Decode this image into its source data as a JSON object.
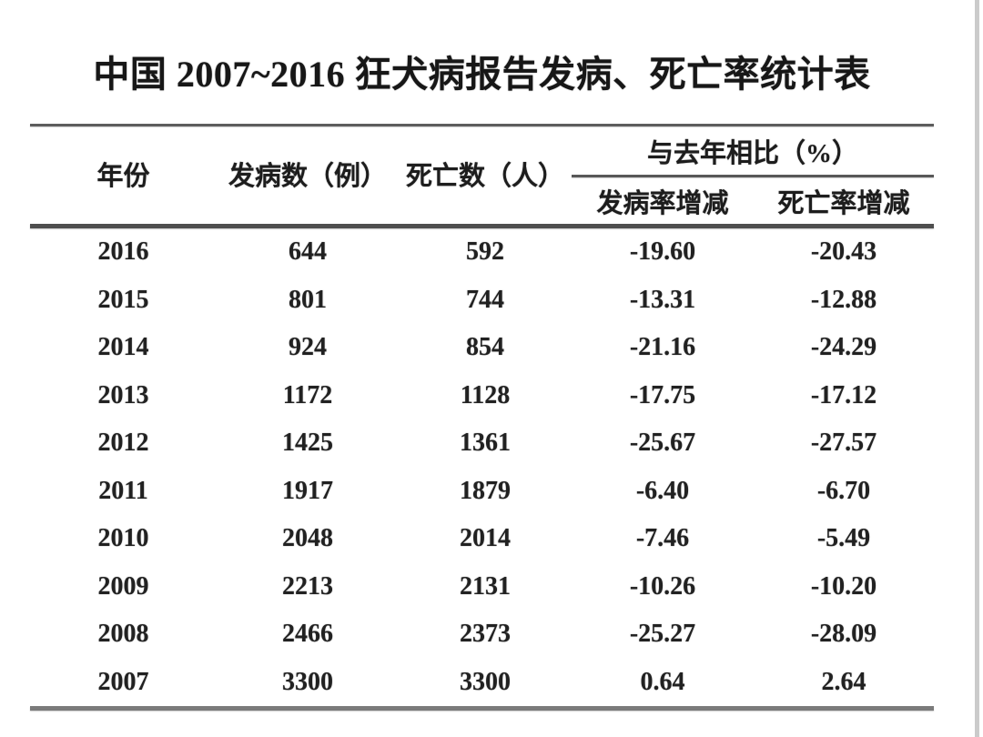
{
  "title": "中国 2007~2016 狂犬病报告发病、死亡率统计表",
  "header": {
    "year": "年份",
    "cases": "发病数（例）",
    "deaths": "死亡数（人）",
    "compare_group": "与去年相比（%）",
    "incidence_change": "发病率增减",
    "mortality_change": "死亡率增减"
  },
  "rows": [
    {
      "year": "2016",
      "cases": "644",
      "deaths": "592",
      "incidence_change": "-19.60",
      "mortality_change": "-20.43"
    },
    {
      "year": "2015",
      "cases": "801",
      "deaths": "744",
      "incidence_change": "-13.31",
      "mortality_change": "-12.88"
    },
    {
      "year": "2014",
      "cases": "924",
      "deaths": "854",
      "incidence_change": "-21.16",
      "mortality_change": "-24.29"
    },
    {
      "year": "2013",
      "cases": "1172",
      "deaths": "1128",
      "incidence_change": "-17.75",
      "mortality_change": "-17.12"
    },
    {
      "year": "2012",
      "cases": "1425",
      "deaths": "1361",
      "incidence_change": "-25.67",
      "mortality_change": "-27.57"
    },
    {
      "year": "2011",
      "cases": "1917",
      "deaths": "1879",
      "incidence_change": "-6.40",
      "mortality_change": "-6.70"
    },
    {
      "year": "2010",
      "cases": "2048",
      "deaths": "2014",
      "incidence_change": "-7.46",
      "mortality_change": "-5.49"
    },
    {
      "year": "2009",
      "cases": "2213",
      "deaths": "2131",
      "incidence_change": "-10.26",
      "mortality_change": "-10.20"
    },
    {
      "year": "2008",
      "cases": "2466",
      "deaths": "2373",
      "incidence_change": "-25.27",
      "mortality_change": "-28.09"
    },
    {
      "year": "2007",
      "cases": "3300",
      "deaths": "3300",
      "incidence_change": "0.64",
      "mortality_change": "2.64"
    }
  ],
  "colors": {
    "background": "#ffffff",
    "text": "#1f1f1f",
    "rule_top": "#5d5d5d",
    "rule_header_bottom": "#4e4e4e",
    "rule_table_bottom": "#7b7b7b",
    "right_edge_strip": "#cbcbcb"
  },
  "chart_data": {
    "type": "table",
    "title": "中国 2007~2016 狂犬病报告发病、死亡率统计表",
    "columns": [
      "年份",
      "发病数（例）",
      "死亡数（人）",
      "与去年相比（%）发病率增减",
      "与去年相比（%）死亡率增减"
    ],
    "rows": [
      [
        2016,
        644,
        592,
        -19.6,
        -20.43
      ],
      [
        2015,
        801,
        744,
        -13.31,
        -12.88
      ],
      [
        2014,
        924,
        854,
        -21.16,
        -24.29
      ],
      [
        2013,
        1172,
        1128,
        -17.75,
        -17.12
      ],
      [
        2012,
        1425,
        1361,
        -25.67,
        -27.57
      ],
      [
        2011,
        1917,
        1879,
        -6.4,
        -6.7
      ],
      [
        2010,
        2048,
        2014,
        -7.46,
        -5.49
      ],
      [
        2009,
        2213,
        2131,
        -10.26,
        -10.2
      ],
      [
        2008,
        2466,
        2373,
        -25.27,
        -28.09
      ],
      [
        2007,
        3300,
        3300,
        0.64,
        2.64
      ]
    ],
    "layout": {
      "column_group": "与去年相比（%） spans last two columns",
      "grid": "horizontal rules only (top, under group header, under header, bottom)"
    }
  }
}
